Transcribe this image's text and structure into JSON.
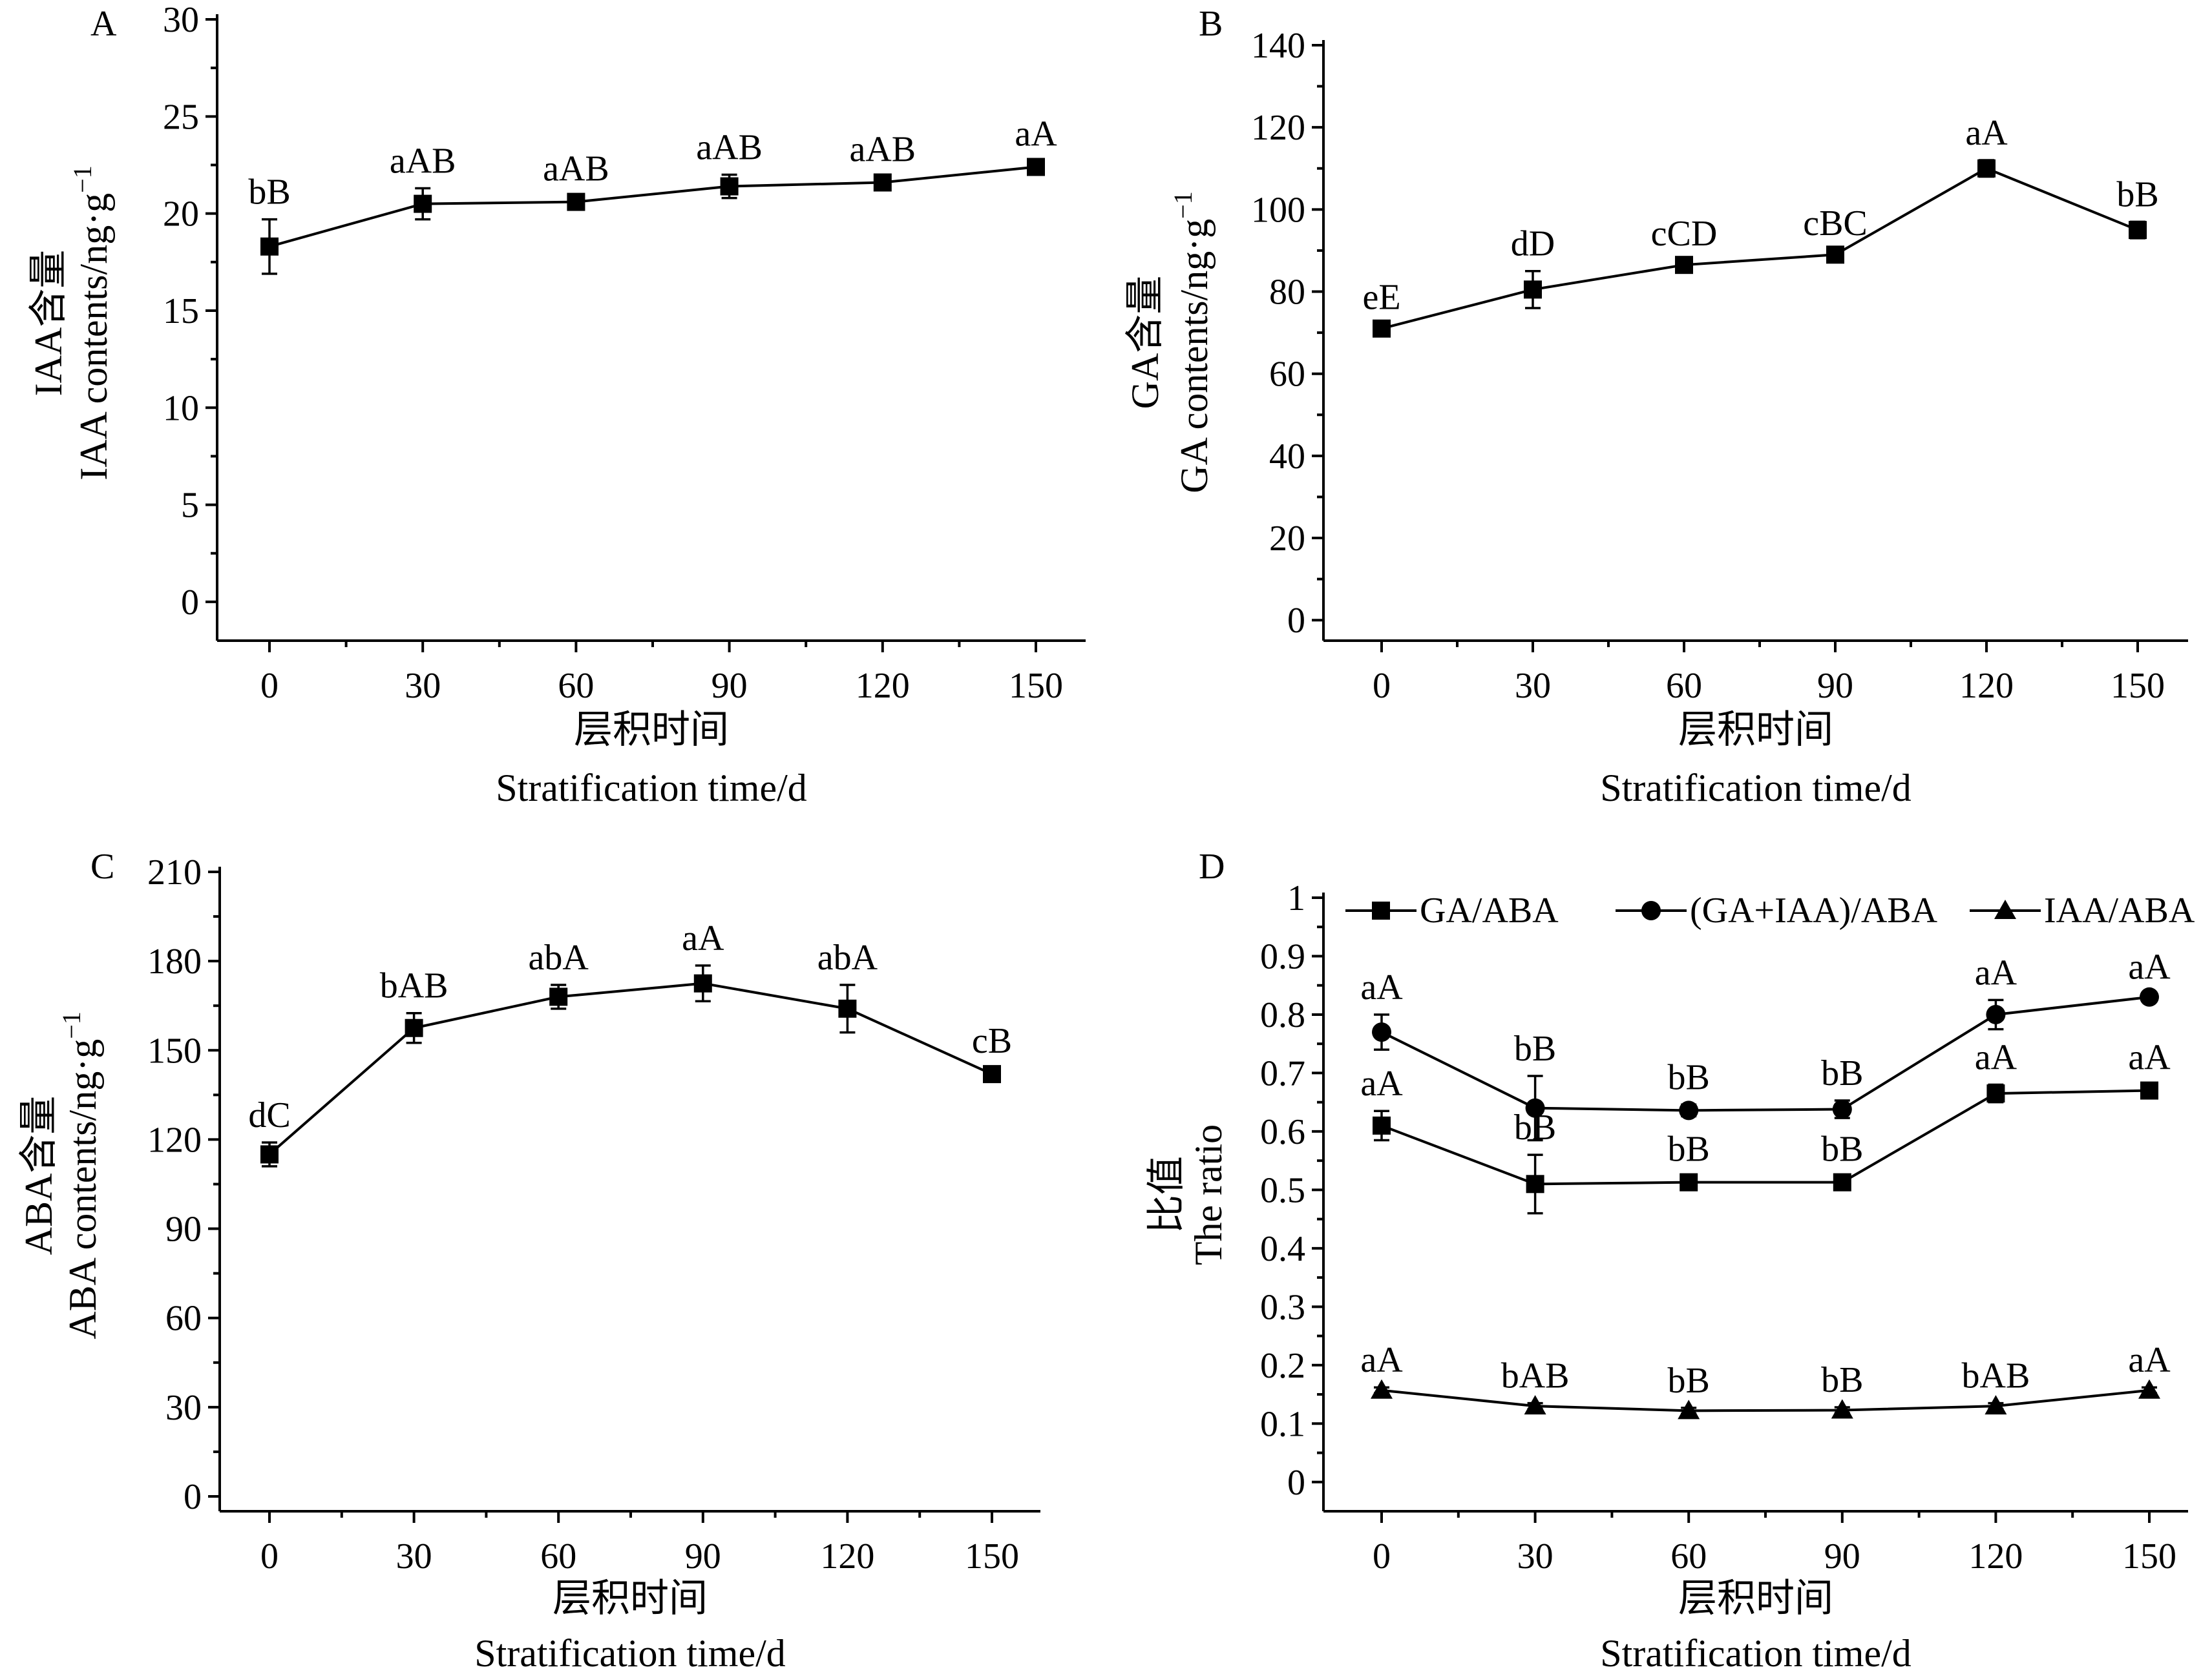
{
  "chart_data": [
    {
      "panel": "A",
      "type": "line",
      "xlabel_cn": "层积时间",
      "xlabel": "Stratification time/d",
      "ylabel_cn": "IAA含量",
      "ylabel": "IAA contents/ng·g",
      "ylabel_sup": "−1",
      "x": [
        0,
        30,
        60,
        90,
        120,
        150
      ],
      "xlim": [
        -10,
        160
      ],
      "ylim": [
        -2,
        30
      ],
      "yticks": [
        0,
        5,
        10,
        15,
        20,
        25,
        30
      ],
      "series": [
        {
          "name": "IAA",
          "marker": "square",
          "values": [
            18.3,
            20.5,
            20.6,
            21.4,
            21.6,
            22.4
          ],
          "errors": [
            1.4,
            0.8,
            0.3,
            0.6,
            0.3,
            0.3
          ],
          "labels": [
            "bB",
            "aAB",
            "aAB",
            "aAB",
            "aAB",
            "aA"
          ]
        }
      ]
    },
    {
      "panel": "B",
      "type": "line",
      "xlabel_cn": "层积时间",
      "xlabel": "Stratification time/d",
      "ylabel_cn": "GA含量",
      "ylabel": "GA contents/ng·g",
      "ylabel_sup": "−1",
      "x": [
        0,
        30,
        60,
        90,
        120,
        150
      ],
      "xlim": [
        -10,
        160
      ],
      "ylim": [
        -5,
        140
      ],
      "yticks": [
        0,
        20,
        40,
        60,
        80,
        100,
        120,
        140
      ],
      "series": [
        {
          "name": "GA",
          "marker": "square",
          "values": [
            71,
            80.5,
            86.5,
            89,
            110,
            95
          ],
          "errors": [
            1.0,
            4.5,
            1.0,
            1.0,
            2.0,
            2.0
          ],
          "labels": [
            "eE",
            "dD",
            "cCD",
            "cBC",
            "aA",
            "bB"
          ]
        }
      ]
    },
    {
      "panel": "C",
      "type": "line",
      "xlabel_cn": "层积时间",
      "xlabel": "Stratification time/d",
      "ylabel_cn": "ABA含量",
      "ylabel": "ABA contents/ng·g",
      "ylabel_sup": "−1",
      "x": [
        0,
        30,
        60,
        90,
        120,
        150
      ],
      "xlim": [
        -10,
        160
      ],
      "ylim": [
        -5,
        210
      ],
      "yticks": [
        0,
        30,
        60,
        90,
        120,
        150,
        180,
        210
      ],
      "series": [
        {
          "name": "ABA",
          "marker": "square",
          "values": [
            115,
            157.5,
            168,
            172.5,
            164,
            142
          ],
          "errors": [
            4,
            5,
            4,
            6,
            8,
            2
          ],
          "labels": [
            "dC",
            "bAB",
            "abA",
            "aA",
            "abA",
            "cB"
          ]
        }
      ]
    },
    {
      "panel": "D",
      "type": "line",
      "xlabel_cn": "层积时间",
      "xlabel": "Stratification time/d",
      "ylabel_cn": "比值",
      "ylabel": "The ratio",
      "x": [
        0,
        30,
        60,
        90,
        120,
        150
      ],
      "xlim": [
        -10,
        160
      ],
      "ylim": [
        -0.05,
        1.0
      ],
      "yticks": [
        0,
        0.1,
        0.2,
        0.3,
        0.4,
        0.5,
        0.6,
        0.7,
        0.8,
        0.9,
        1.0
      ],
      "legend": "top",
      "series": [
        {
          "name": "GA/ABA",
          "marker": "square",
          "values": [
            0.61,
            0.51,
            0.513,
            0.513,
            0.665,
            0.67
          ],
          "errors": [
            0.025,
            0.05,
            0.01,
            0.01,
            0.015,
            0.01
          ],
          "labels": [
            "aA",
            "bB",
            "bB",
            "bB",
            "aA",
            "aA"
          ]
        },
        {
          "name": "(GA+IAA)/ABA",
          "marker": "circle",
          "values": [
            0.77,
            0.64,
            0.636,
            0.638,
            0.8,
            0.83
          ],
          "errors": [
            0.03,
            0.055,
            0.01,
            0.015,
            0.025,
            0.005
          ],
          "labels": [
            "aA",
            "bB",
            "bB",
            "bB",
            "aA",
            "aA"
          ]
        },
        {
          "name": "IAA/ABA",
          "marker": "triangle",
          "values": [
            0.157,
            0.13,
            0.122,
            0.123,
            0.13,
            0.157
          ],
          "errors": [
            0.005,
            0.005,
            0.005,
            0.005,
            0.005,
            0.005
          ],
          "labels": [
            "aA",
            "bAB",
            "bB",
            "bB",
            "bAB",
            "aA"
          ]
        }
      ]
    }
  ]
}
